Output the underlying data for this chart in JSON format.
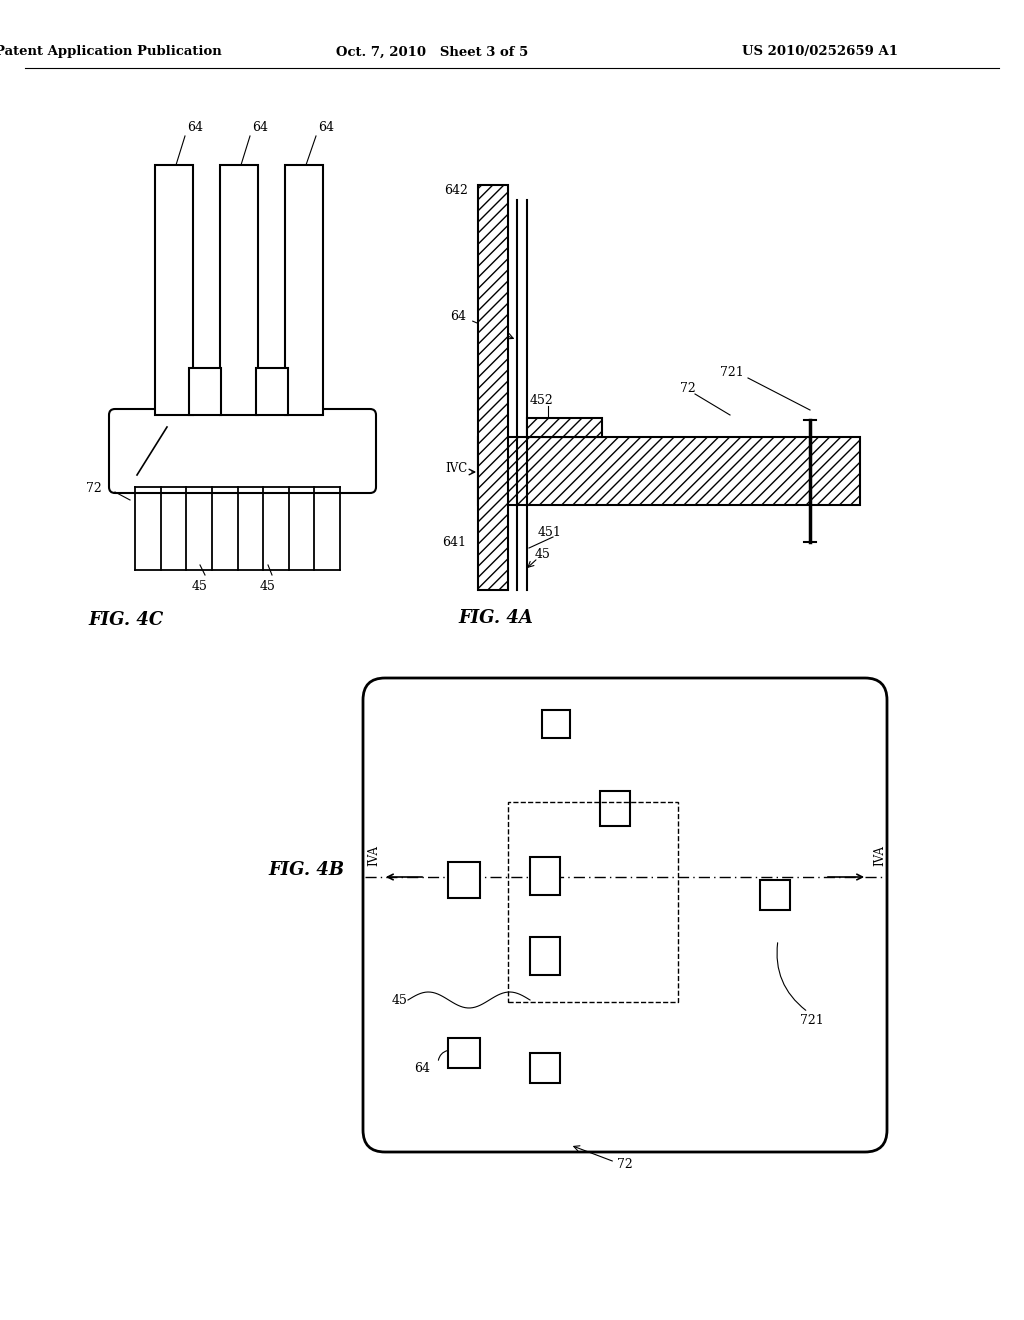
{
  "background_color": "#ffffff",
  "header_left": "Patent Application Publication",
  "header_center": "Oct. 7, 2010   Sheet 3 of 5",
  "header_right": "US 2010/0252659 A1",
  "fig4c_label": "FIG. 4C",
  "fig4a_label": "FIG. 4A",
  "fig4b_label": "FIG. 4B"
}
